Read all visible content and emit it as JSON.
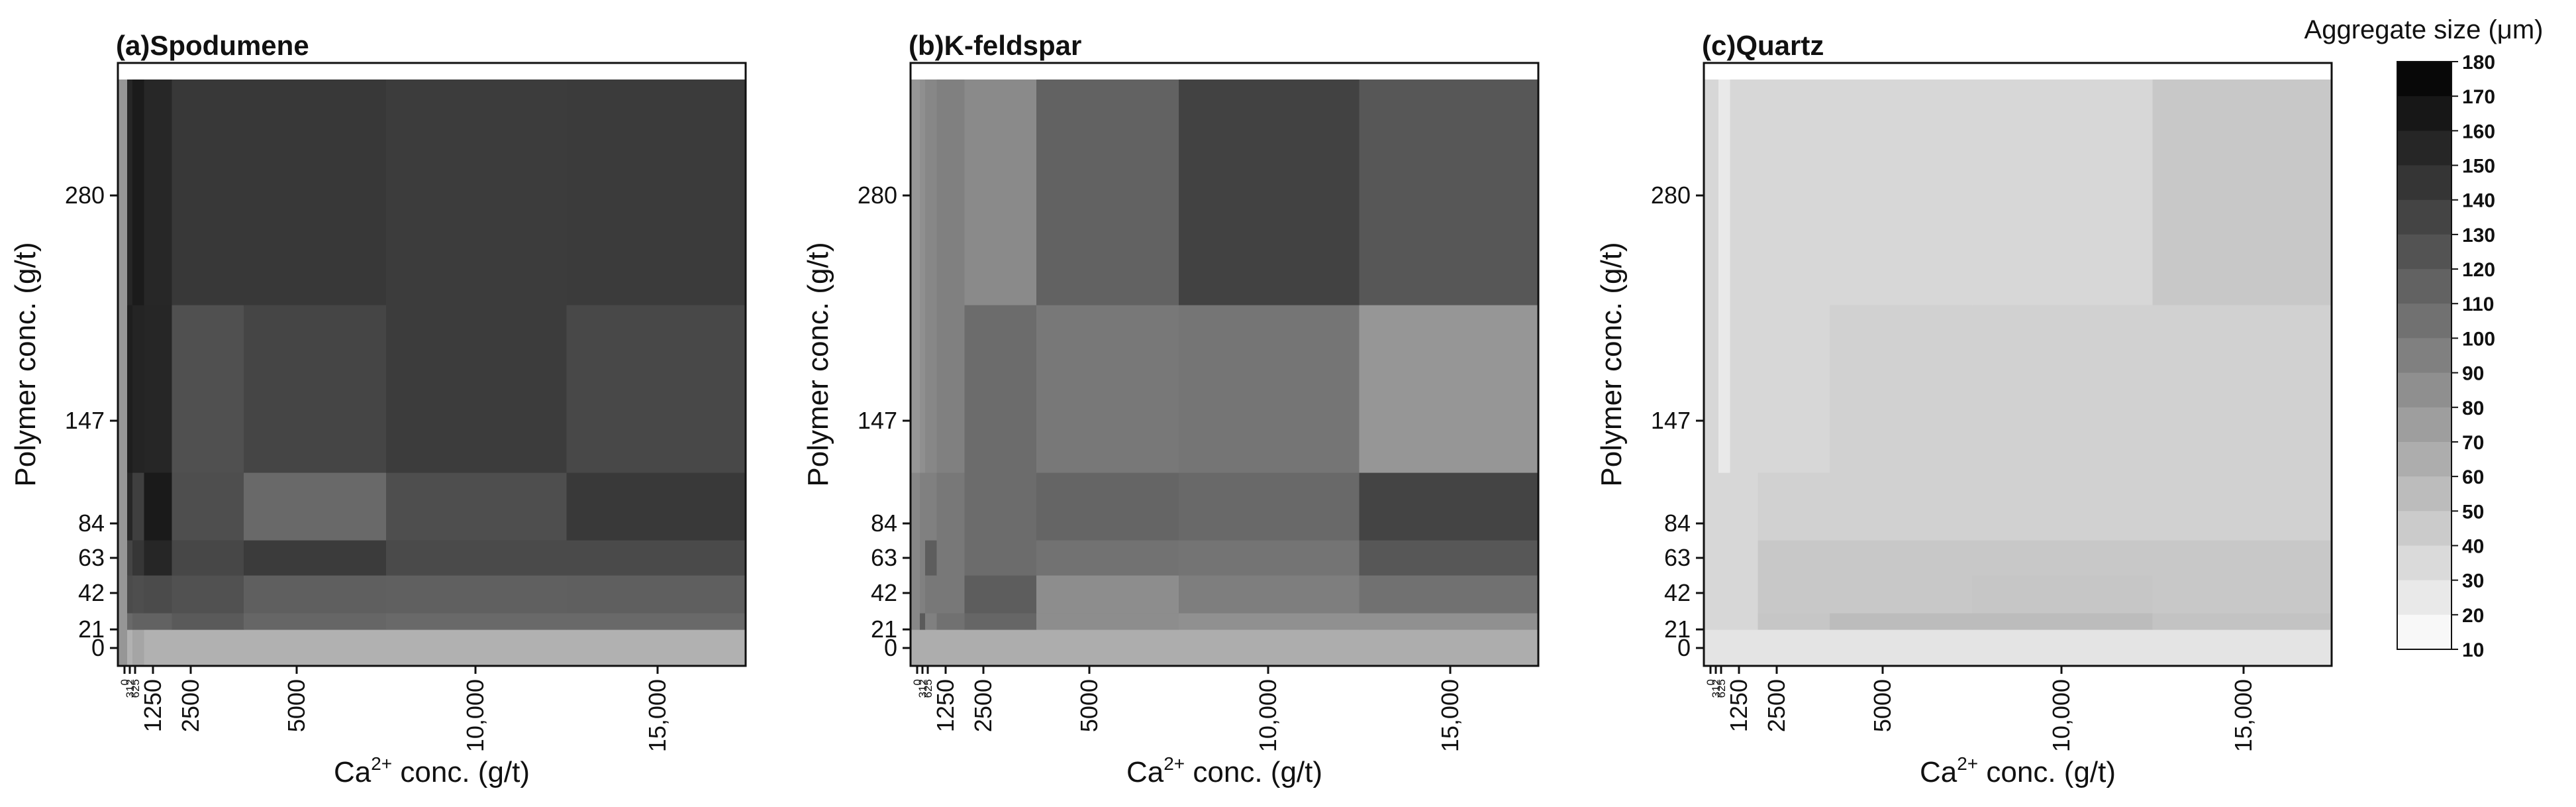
{
  "figure": {
    "colorbar": {
      "title": "Aggregate size (μm)",
      "ticks": [
        180,
        170,
        160,
        150,
        140,
        130,
        120,
        110,
        100,
        90,
        80,
        70,
        60,
        50,
        40,
        30,
        20,
        10
      ],
      "range": [
        10,
        180
      ]
    }
  },
  "chart_data": [
    {
      "type": "heatmap",
      "title": "(a)Spodumene",
      "xlabel_main": "Ca",
      "xlabel_sup": "2+",
      "xlabel_rest": " conc. (g/t)",
      "ylabel": "Polymer conc. (g/t)",
      "x_ticks": [
        {
          "value": 0,
          "label": "0"
        },
        {
          "value": 312,
          "label": "312"
        },
        {
          "value": 625,
          "label": "625"
        },
        {
          "value": 1250,
          "label": "1250"
        },
        {
          "value": 2500,
          "label": "2500"
        },
        {
          "value": 5000,
          "label": "5000"
        },
        {
          "value": 10000,
          "label": "10,000"
        },
        {
          "value": 15000,
          "label": "15,000"
        }
      ],
      "y_ticks": [
        {
          "value": 0,
          "label": "0"
        },
        {
          "value": 21,
          "label": "21"
        },
        {
          "value": 42,
          "label": "42"
        },
        {
          "value": 63,
          "label": "63"
        },
        {
          "value": 84,
          "label": "84"
        },
        {
          "value": 147,
          "label": "147"
        },
        {
          "value": 280,
          "label": "280"
        }
      ],
      "x_edges": [
        -300,
        156,
        468,
        937,
        1875,
        3750,
        7500,
        12500,
        17500
      ],
      "y_edges": [
        -10,
        10.5,
        31.5,
        52.5,
        73.5,
        115.5,
        213.5,
        346.5
      ],
      "z": [
        [
          80,
          62,
          70,
          62,
          62,
          62,
          62,
          62
        ],
        [
          80,
          110,
          115,
          115,
          120,
          112,
          110,
          110
        ],
        [
          80,
          130,
          128,
          130,
          126,
          117,
          116,
          117
        ],
        [
          80,
          135,
          144,
          155,
          133,
          141,
          131,
          131
        ],
        [
          80,
          155,
          138,
          163,
          128,
          110,
          128,
          142
        ],
        [
          80,
          160,
          156,
          155,
          127,
          134,
          140,
          132
        ],
        [
          80,
          155,
          162,
          154,
          143,
          143,
          140,
          141
        ]
      ]
    },
    {
      "type": "heatmap",
      "title": "(b)K-feldspar",
      "xlabel_main": "Ca",
      "xlabel_sup": "2+",
      "xlabel_rest": " conc. (g/t)",
      "ylabel": "Polymer conc. (g/t)",
      "x_ticks": [
        {
          "value": 0,
          "label": "0"
        },
        {
          "value": 312,
          "label": "312"
        },
        {
          "value": 625,
          "label": "625"
        },
        {
          "value": 1250,
          "label": "1250"
        },
        {
          "value": 2500,
          "label": "2500"
        },
        {
          "value": 5000,
          "label": "5000"
        },
        {
          "value": 10000,
          "label": "10,000"
        },
        {
          "value": 15000,
          "label": "15,000"
        }
      ],
      "y_ticks": [
        {
          "value": 0,
          "label": "0"
        },
        {
          "value": 21,
          "label": "21"
        },
        {
          "value": 42,
          "label": "42"
        },
        {
          "value": 63,
          "label": "63"
        },
        {
          "value": 84,
          "label": "84"
        },
        {
          "value": 147,
          "label": "147"
        },
        {
          "value": 280,
          "label": "280"
        }
      ],
      "x_edges": [
        -300,
        156,
        468,
        937,
        1875,
        3750,
        7500,
        12500,
        17500
      ],
      "y_edges": [
        -10,
        10.5,
        31.5,
        52.5,
        73.5,
        115.5,
        213.5,
        346.5
      ],
      "z": [
        [
          65,
          65,
          65,
          65,
          65,
          65,
          65,
          65
        ],
        [
          90,
          120,
          95,
          105,
          112,
          86,
          84,
          84
        ],
        [
          90,
          95,
          100,
          100,
          118,
          86,
          96,
          105
        ],
        [
          90,
          95,
          118,
          100,
          108,
          104,
          103,
          122
        ],
        [
          90,
          95,
          95,
          100,
          108,
          113,
          110,
          135
        ],
        [
          80,
          85,
          90,
          95,
          108,
          100,
          102,
          80
        ],
        [
          80,
          85,
          90,
          95,
          88,
          115,
          136,
          122
        ]
      ]
    },
    {
      "type": "heatmap",
      "title": "(c)Quartz",
      "xlabel_main": "Ca",
      "xlabel_sup": "2+",
      "xlabel_rest": " conc. (g/t)",
      "ylabel": "Polymer conc. (g/t)",
      "x_ticks": [
        {
          "value": 0,
          "label": "0"
        },
        {
          "value": 312,
          "label": "312"
        },
        {
          "value": 625,
          "label": "625"
        },
        {
          "value": 1250,
          "label": "1250"
        },
        {
          "value": 2500,
          "label": "2500"
        },
        {
          "value": 5000,
          "label": "5000"
        },
        {
          "value": 10000,
          "label": "10,000"
        },
        {
          "value": 15000,
          "label": "15,000"
        }
      ],
      "y_ticks": [
        {
          "value": 0,
          "label": "0"
        },
        {
          "value": 21,
          "label": "21"
        },
        {
          "value": 42,
          "label": "42"
        },
        {
          "value": 63,
          "label": "63"
        },
        {
          "value": 84,
          "label": "84"
        },
        {
          "value": 147,
          "label": "147"
        },
        {
          "value": 280,
          "label": "280"
        }
      ],
      "x_edges": [
        -300,
        156,
        468,
        937,
        1875,
        3750,
        7500,
        12500,
        17500
      ],
      "y_edges": [
        -10,
        10.5,
        31.5,
        52.5,
        73.5,
        115.5,
        213.5,
        346.5
      ],
      "z": [
        [
          28,
          28,
          28,
          28,
          28,
          28,
          28,
          28
        ],
        [
          37,
          37,
          37,
          37,
          48,
          55,
          55,
          50
        ],
        [
          37,
          37,
          37,
          37,
          47,
          47,
          48,
          47
        ],
        [
          37,
          37,
          37,
          37,
          47,
          47,
          47,
          47
        ],
        [
          37,
          37,
          37,
          37,
          41,
          41,
          41,
          41
        ],
        [
          37,
          37,
          25,
          37,
          37,
          41,
          41,
          41
        ],
        [
          37,
          37,
          25,
          37,
          37,
          37,
          37,
          47
        ]
      ]
    }
  ]
}
